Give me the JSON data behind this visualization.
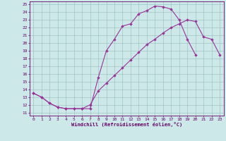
{
  "bg_color": "#cce8e8",
  "line_color": "#993399",
  "xlabel": "Windchill (Refroidissement éolien,°C)",
  "xlim": [
    -0.5,
    23.5
  ],
  "ylim": [
    10.6,
    25.4
  ],
  "xticks": [
    0,
    1,
    2,
    3,
    4,
    5,
    6,
    7,
    8,
    9,
    10,
    11,
    12,
    13,
    14,
    15,
    16,
    17,
    18,
    19,
    20,
    21,
    22,
    23
  ],
  "yticks": [
    11,
    12,
    13,
    14,
    15,
    16,
    17,
    18,
    19,
    20,
    21,
    22,
    23,
    24,
    25
  ],
  "upper_x": [
    0,
    1,
    2,
    3,
    4,
    5,
    6,
    7,
    8,
    9,
    10,
    11,
    12,
    13,
    14,
    15,
    16,
    17,
    18,
    19,
    20,
    21
  ],
  "upper_y": [
    13.5,
    13.0,
    12.2,
    11.7,
    11.5,
    11.5,
    11.5,
    11.5,
    15.5,
    19.0,
    20.5,
    22.2,
    22.5,
    23.8,
    24.2,
    24.8,
    24.7,
    24.4,
    23.0,
    20.5,
    18.5,
    null
  ],
  "lower_x": [
    0,
    1,
    2,
    3,
    4,
    5,
    6,
    7,
    8,
    9,
    10,
    11,
    12,
    13,
    14,
    15,
    16,
    17,
    18,
    19,
    20,
    21,
    22,
    23
  ],
  "lower_y": [
    13.5,
    13.0,
    12.2,
    11.7,
    11.5,
    11.5,
    11.5,
    12.0,
    13.8,
    14.8,
    15.8,
    16.8,
    17.8,
    18.8,
    19.8,
    20.5,
    21.3,
    22.0,
    22.5,
    23.0,
    22.8,
    20.8,
    20.5,
    18.5
  ]
}
